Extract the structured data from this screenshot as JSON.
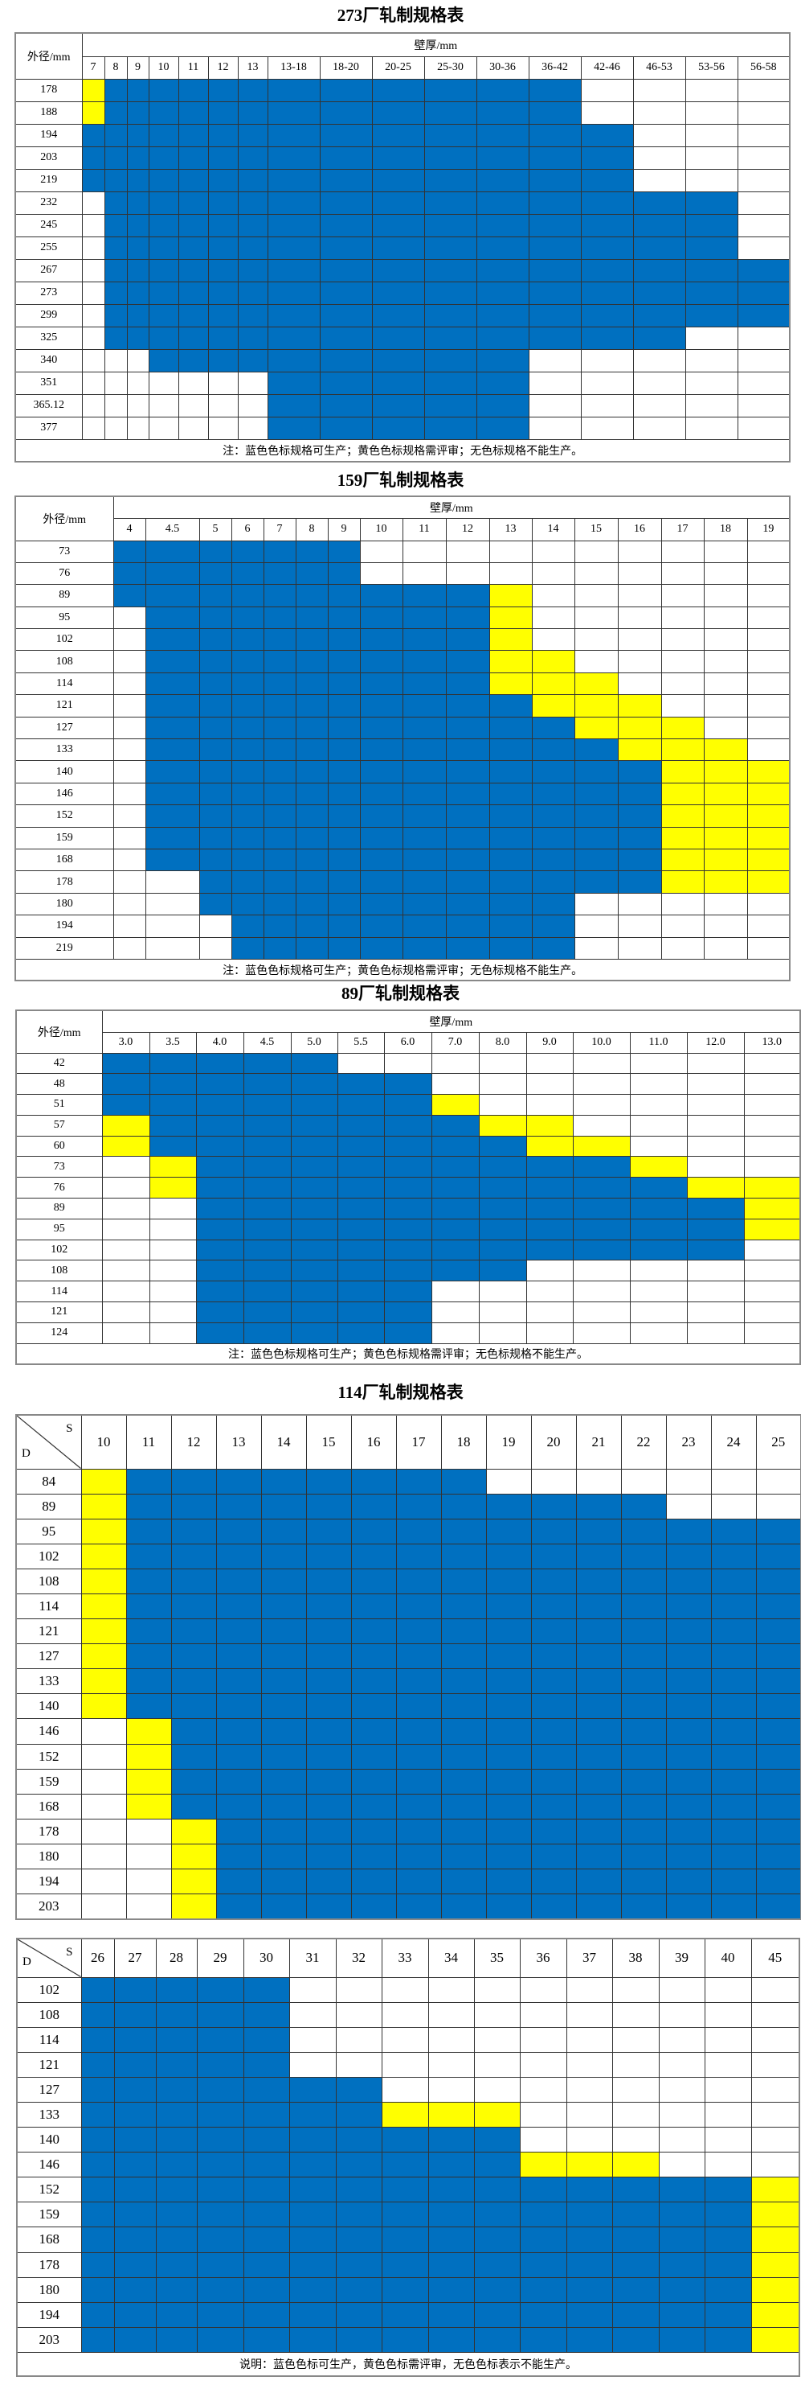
{
  "legend_colors": {
    "B": "#0070C0",
    "Y": "#FFFF00",
    "W": "#FFFFFF"
  },
  "tables": [
    {
      "title": "273厂轧制规格表",
      "row_header": "外径/mm",
      "col_group": "壁厚/mm",
      "columns": [
        "7",
        "8",
        "9",
        "10",
        "11",
        "12",
        "13",
        "13-18",
        "18-20",
        "20-25",
        "25-30",
        "30-36",
        "36-42",
        "42-46",
        "46-53",
        "53-56",
        "56-58"
      ],
      "rows": [
        {
          "label": "178",
          "cells": "YBBBBBBBBBBBBWWWW"
        },
        {
          "label": "188",
          "cells": "YBBBBBBBBBBBBWWWW"
        },
        {
          "label": "194",
          "cells": "BBBBBBBBBBBBBBWWW"
        },
        {
          "label": "203",
          "cells": "BBBBBBBBBBBBBBWWW"
        },
        {
          "label": "219",
          "cells": "BBBBBBBBBBBBBBWWW"
        },
        {
          "label": "232",
          "cells": "WBBBBBBBBBBBBBBBW"
        },
        {
          "label": "245",
          "cells": "WBBBBBBBBBBBBBBBW"
        },
        {
          "label": "255",
          "cells": "WBBBBBBBBBBBBBBBW"
        },
        {
          "label": "267",
          "cells": "WBBBBBBBBBBBBBBBB"
        },
        {
          "label": "273",
          "cells": "WBBBBBBBBBBBBBBBB"
        },
        {
          "label": "299",
          "cells": "WBBBBBBBBBBBBBBBB"
        },
        {
          "label": "325",
          "cells": "WBBBBBBBBBBBBBBWW"
        },
        {
          "label": "340",
          "cells": "WWWBBBBBBBBBWWWWW"
        },
        {
          "label": "351",
          "cells": "WWWWWWWBBBBBWWWWW"
        },
        {
          "label": "365.12",
          "cells": "WWWWWWWBBBBBWWWWW"
        },
        {
          "label": "377",
          "cells": "WWWWWWWBBBBBWWWWW"
        }
      ],
      "footer": "注：蓝色色标规格可生产；黄色色标规格需评审；无色标规格不能生产。"
    },
    {
      "title": "159厂轧制规格表",
      "row_header": "外径/mm",
      "col_group": "壁厚/mm",
      "columns": [
        "4",
        "4.5",
        "5",
        "6",
        "7",
        "8",
        "9",
        "10",
        "11",
        "12",
        "13",
        "14",
        "15",
        "16",
        "17",
        "18",
        "19"
      ],
      "rows": [
        {
          "label": "73",
          "cells": "BBBBBBBWWWWWWWWWW"
        },
        {
          "label": "76",
          "cells": "BBBBBBBWWWWWWWWWW"
        },
        {
          "label": "89",
          "cells": "BBBBBBBBBBYWWWWWW"
        },
        {
          "label": "95",
          "cells": "WBBBBBBBBBYWWWWWW"
        },
        {
          "label": "102",
          "cells": "WBBBBBBBBBYWWWWWW"
        },
        {
          "label": "108",
          "cells": "WBBBBBBBBBYYWWWWW"
        },
        {
          "label": "114",
          "cells": "WBBBBBBBBBYYYWWWW"
        },
        {
          "label": "121",
          "cells": "WBBBBBBBBBBYYYWWW"
        },
        {
          "label": "127",
          "cells": "WBBBBBBBBBBBYYYWW"
        },
        {
          "label": "133",
          "cells": "WBBBBBBBBBBBBYYYW"
        },
        {
          "label": "140",
          "cells": "WBBBBBBBBBBBBBYYY"
        },
        {
          "label": "146",
          "cells": "WBBBBBBBBBBBBBYYY"
        },
        {
          "label": "152",
          "cells": "WBBBBBBBBBBBBBYYY"
        },
        {
          "label": "159",
          "cells": "WBBBBBBBBBBBBBYYY"
        },
        {
          "label": "168",
          "cells": "WBBBBBBBBBBBBBYYY"
        },
        {
          "label": "178",
          "cells": "WWBBBBBBBBBBBBYYY"
        },
        {
          "label": "180",
          "cells": "WWBBBBBBBBBBWWWWW"
        },
        {
          "label": "194",
          "cells": "WWWBBBBBBBBBWWWWW"
        },
        {
          "label": "219",
          "cells": "WWWBBBBBBBBBWWWWW"
        }
      ],
      "footer": "注：蓝色色标规格可生产；黄色色标规格需评审；无色标规格不能生产。"
    },
    {
      "title": "89厂轧制规格表",
      "row_header": "外径/mm",
      "col_group": "壁厚/mm",
      "columns": [
        "3.0",
        "3.5",
        "4.0",
        "4.5",
        "5.0",
        "5.5",
        "6.0",
        "7.0",
        "8.0",
        "9.0",
        "10.0",
        "11.0",
        "12.0",
        "13.0"
      ],
      "rows": [
        {
          "label": "42",
          "cells": "BBBBBWWWWWWWWW"
        },
        {
          "label": "48",
          "cells": "BBBBBBBWWWWWWW"
        },
        {
          "label": "51",
          "cells": "BBBBBBBYWWWWWW"
        },
        {
          "label": "57",
          "cells": "YBBBBBBBYYWWWW"
        },
        {
          "label": "60",
          "cells": "YBBBBBBBBYYWWW"
        },
        {
          "label": "73",
          "cells": "WYBBBBBBBBBYWW"
        },
        {
          "label": "76",
          "cells": "WYBBBBBBBBBBYY"
        },
        {
          "label": "89",
          "cells": "WWBBBBBBBBBBBY"
        },
        {
          "label": "95",
          "cells": "WWBBBBBBBBBBBY"
        },
        {
          "label": "102",
          "cells": "WWBBBBBBBBBBBW"
        },
        {
          "label": "108",
          "cells": "WWBBBBBBBWWWWW"
        },
        {
          "label": "114",
          "cells": "WWBBBBBWWWWWWW"
        },
        {
          "label": "121",
          "cells": "WWBBBBBWWWWWWW"
        },
        {
          "label": "124",
          "cells": "WWBBBBBWWWWWWW"
        }
      ],
      "footer": "注：蓝色色标规格可生产；黄色色标规格需评审；无色标规格不能生产。"
    },
    {
      "title": "114厂轧制规格表",
      "corner_s": "S",
      "corner_d": "D",
      "columns": [
        "10",
        "11",
        "12",
        "13",
        "14",
        "15",
        "16",
        "17",
        "18",
        "19",
        "20",
        "21",
        "22",
        "23",
        "24",
        "25"
      ],
      "rows": [
        {
          "label": "84",
          "cells": "YBBBBBBBBWWWWWWW"
        },
        {
          "label": "89",
          "cells": "YBBBBBBBBBBBBWWW"
        },
        {
          "label": "95",
          "cells": "YBBBBBBBBBBBBBBB"
        },
        {
          "label": "102",
          "cells": "YBBBBBBBBBBBBBBB"
        },
        {
          "label": "108",
          "cells": "YBBBBBBBBBBBBBBB"
        },
        {
          "label": "114",
          "cells": "YBBBBBBBBBBBBBBB"
        },
        {
          "label": "121",
          "cells": "YBBBBBBBBBBBBBBB"
        },
        {
          "label": "127",
          "cells": "YBBBBBBBBBBBBBBB"
        },
        {
          "label": "133",
          "cells": "YBBBBBBBBBBBBBBB"
        },
        {
          "label": "140",
          "cells": "YBBBBBBBBBBBBBBB"
        },
        {
          "label": "146",
          "cells": "WYBBBBBBBBBBBBBB"
        },
        {
          "label": "152",
          "cells": "WYBBBBBBBBBBBBBB"
        },
        {
          "label": "159",
          "cells": "WYBBBBBBBBBBBBBB"
        },
        {
          "label": "168",
          "cells": "WYBBBBBBBBBBBBBB"
        },
        {
          "label": "178",
          "cells": "WWYBBBBBBBBBBBBB"
        },
        {
          "label": "180",
          "cells": "WWYBBBBBBBBBBBBB"
        },
        {
          "label": "194",
          "cells": "WWYBBBBBBBBBBBBB"
        },
        {
          "label": "203",
          "cells": "WWYBBBBBBBBBBBBB"
        }
      ]
    },
    {
      "corner_s": "S",
      "corner_d": "D",
      "columns": [
        "26",
        "27",
        "28",
        "29",
        "30",
        "31",
        "32",
        "33",
        "34",
        "35",
        "36",
        "37",
        "38",
        "39",
        "40",
        "45"
      ],
      "rows": [
        {
          "label": "102",
          "cells": "BBBBBWWWWWWWWWWW"
        },
        {
          "label": "108",
          "cells": "BBBBBWWWWWWWWWWW"
        },
        {
          "label": "114",
          "cells": "BBBBBWWWWWWWWWWW"
        },
        {
          "label": "121",
          "cells": "BBBBBWWWWWWWWWWW"
        },
        {
          "label": "127",
          "cells": "BBBBBBBWWWWWWWWW"
        },
        {
          "label": "133",
          "cells": "BBBBBBBYYYWWWWWW"
        },
        {
          "label": "140",
          "cells": "BBBBBBBBBBWWWWWW"
        },
        {
          "label": "146",
          "cells": "BBBBBBBBBBYYYWWW"
        },
        {
          "label": "152",
          "cells": "BBBBBBBBBBBBBBBY"
        },
        {
          "label": "159",
          "cells": "BBBBBBBBBBBBBBBY"
        },
        {
          "label": "168",
          "cells": "BBBBBBBBBBBBBBBY"
        },
        {
          "label": "178",
          "cells": "BBBBBBBBBBBBBBBY"
        },
        {
          "label": "180",
          "cells": "BBBBBBBBBBBBBBBY"
        },
        {
          "label": "194",
          "cells": "BBBBBBBBBBBBBBBY"
        },
        {
          "label": "203",
          "cells": "BBBBBBBBBBBBBBBY"
        }
      ],
      "footer": "说明：蓝色色标可生产，黄色色标需评审，无色色标表示不能生产。"
    }
  ]
}
